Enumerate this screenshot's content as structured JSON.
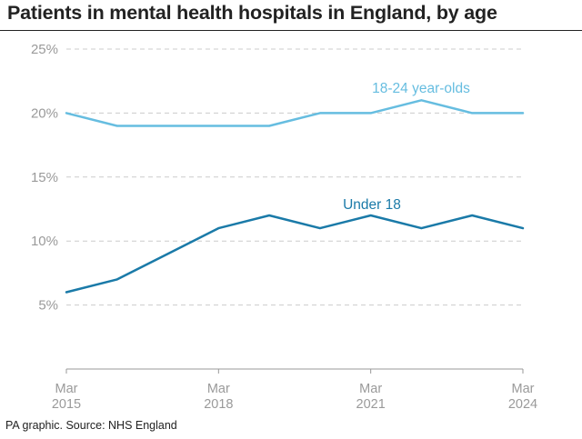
{
  "title": "Patients in mental health hospitals in England, by age",
  "source": "PA graphic. Source: NHS England",
  "colors": {
    "series_18_24": "#66bde0",
    "series_under_18": "#1a7aa8",
    "grid": "#cccccc",
    "axis": "#999999",
    "tick_text": "#9a9a9a"
  },
  "chart_data": {
    "type": "line",
    "title": "Patients in mental health hospitals in England, by age",
    "xlabel": "",
    "ylabel": "",
    "x": [
      "Mar 2015",
      "Mar 2016",
      "Mar 2017",
      "Mar 2018",
      "Mar 2019",
      "Mar 2020",
      "Mar 2021",
      "Mar 2022",
      "Mar 2023",
      "Mar 2024"
    ],
    "x_ticks": [
      {
        "line1": "Mar",
        "line2": "2015",
        "index": 0
      },
      {
        "line1": "Mar",
        "line2": "2018",
        "index": 3
      },
      {
        "line1": "Mar",
        "line2": "2021",
        "index": 6
      },
      {
        "line1": "Mar",
        "line2": "2024",
        "index": 9
      }
    ],
    "ylim": [
      0,
      25
    ],
    "y_ticks": [
      5,
      10,
      15,
      20,
      25
    ],
    "y_tick_labels": [
      "5%",
      "10%",
      "15%",
      "20%",
      "25%"
    ],
    "y_unit": "%",
    "grid": "horizontal dashed",
    "series": [
      {
        "name": "18-24 year-olds",
        "values": [
          20,
          19,
          19,
          19,
          19,
          20,
          20,
          21,
          20,
          20
        ]
      },
      {
        "name": "Under 18",
        "values": [
          6,
          7,
          9,
          11,
          12,
          11,
          12,
          11,
          12,
          11
        ]
      }
    ]
  }
}
